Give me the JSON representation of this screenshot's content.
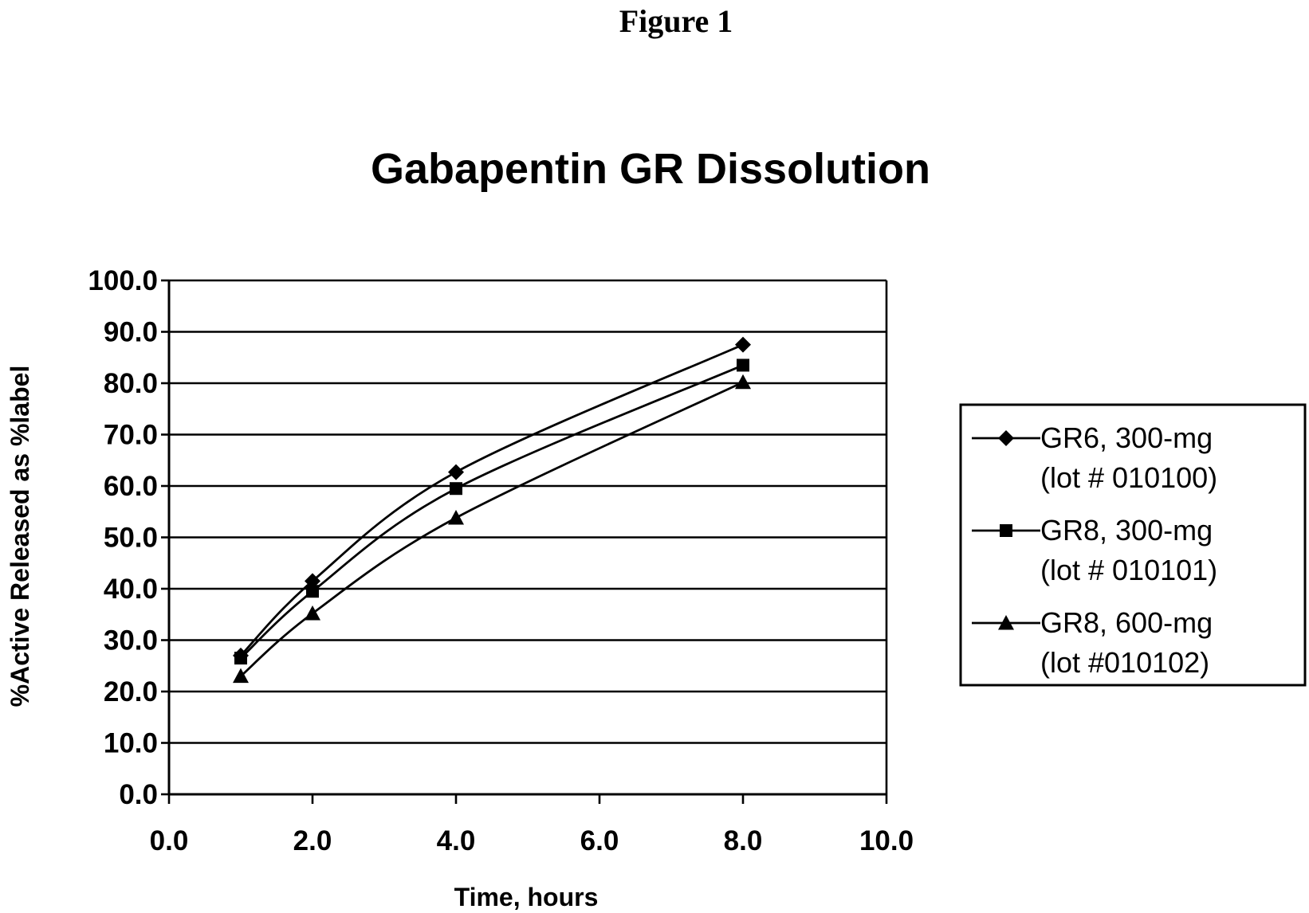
{
  "figure_label": "Figure 1",
  "chart_data": {
    "type": "line",
    "title": "Gabapentin GR Dissolution",
    "xlabel": "Time, hours",
    "ylabel": "%Active Released as %label",
    "xlim": [
      0,
      10
    ],
    "ylim": [
      0,
      100
    ],
    "x_ticks": [
      "0.0",
      "2.0",
      "4.0",
      "6.0",
      "8.0",
      "10.0"
    ],
    "y_ticks": [
      "0.0",
      "10.0",
      "20.0",
      "30.0",
      "40.0",
      "50.0",
      "60.0",
      "70.0",
      "80.0",
      "90.0",
      "100.0"
    ],
    "grid": true,
    "legend_position": "right",
    "x": [
      1,
      2,
      4,
      8
    ],
    "series": [
      {
        "name_lines": [
          "GR6, 300-mg",
          "(lot # 010100)"
        ],
        "marker": "diamond",
        "values": [
          27.0,
          41.5,
          62.7,
          87.5
        ]
      },
      {
        "name_lines": [
          "GR8, 300-mg",
          "(lot # 010101)"
        ],
        "marker": "square",
        "values": [
          26.5,
          39.5,
          59.5,
          83.5
        ]
      },
      {
        "name_lines": [
          "GR8, 600-mg",
          "(lot #010102)"
        ],
        "marker": "triangle",
        "values": [
          23.0,
          35.2,
          53.8,
          80.2
        ]
      }
    ]
  }
}
